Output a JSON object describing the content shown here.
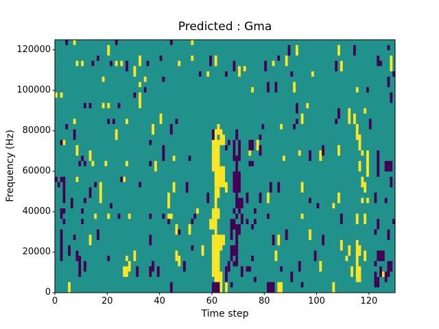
{
  "chart_data": {
    "type": "heatmap",
    "title": "Predicted : Gma",
    "xlabel": "Time step",
    "ylabel": "Frequency (Hz)",
    "xlim": [
      0,
      130
    ],
    "ylim": [
      0,
      125000
    ],
    "x_ticks": [
      0,
      20,
      40,
      60,
      80,
      100,
      120
    ],
    "y_ticks": [
      0,
      20000,
      40000,
      60000,
      80000,
      100000,
      120000
    ],
    "grid": {
      "cols": 130,
      "rows": 48
    },
    "colormap": "viridis",
    "colors": {
      "teal": "#21918c",
      "yellow": "#fde725",
      "dark": "#440154",
      "spine": "#000000",
      "text": "#000000",
      "figure_bg": "#ffffff"
    },
    "cell_format": "[col, row_from_top, rowspan=1, colspan=1]",
    "yellow_cells": [
      [
        7,
        0
      ],
      [
        20,
        1,
        2
      ],
      [
        8,
        4
      ],
      [
        10,
        4
      ],
      [
        23,
        4
      ],
      [
        25,
        4
      ],
      [
        30,
        5,
        2
      ],
      [
        18,
        7
      ],
      [
        32,
        8
      ],
      [
        0,
        10
      ],
      [
        2,
        10
      ],
      [
        18,
        12
      ],
      [
        20,
        12
      ],
      [
        7,
        15
      ],
      [
        27,
        15
      ],
      [
        52,
        0
      ],
      [
        32,
        3,
        2
      ],
      [
        52,
        3
      ],
      [
        61,
        3,
        2
      ],
      [
        47,
        4
      ],
      [
        58,
        6
      ],
      [
        34,
        7
      ],
      [
        32,
        10,
        3
      ],
      [
        40,
        14,
        2
      ],
      [
        37,
        16,
        2
      ],
      [
        92,
        1,
        2
      ],
      [
        88,
        3,
        2
      ],
      [
        83,
        4
      ],
      [
        72,
        5
      ],
      [
        70,
        5,
        2
      ],
      [
        86,
        16
      ],
      [
        75,
        9
      ],
      [
        91,
        8,
        2
      ],
      [
        96,
        12
      ],
      [
        94,
        14,
        2
      ],
      [
        77,
        19,
        2
      ],
      [
        108,
        1,
        2
      ],
      [
        128,
        3,
        3
      ],
      [
        109,
        4,
        2
      ],
      [
        98,
        6
      ],
      [
        115,
        9
      ],
      [
        112,
        13,
        3
      ],
      [
        118,
        13
      ],
      [
        114,
        14,
        2
      ],
      [
        115,
        16,
        3
      ],
      [
        23,
        17,
        2
      ],
      [
        3,
        19
      ],
      [
        8,
        20,
        2
      ],
      [
        13,
        21,
        2
      ],
      [
        14,
        23
      ],
      [
        19,
        23
      ],
      [
        27,
        23
      ],
      [
        8,
        26
      ],
      [
        26,
        26
      ],
      [
        17,
        27,
        4
      ],
      [
        45,
        22
      ],
      [
        38,
        23,
        2
      ],
      [
        45,
        27,
        2
      ],
      [
        43,
        29,
        3
      ],
      [
        62,
        16,
        2
      ],
      [
        61,
        17,
        3
      ],
      [
        63,
        17,
        3
      ],
      [
        64,
        18,
        2
      ],
      [
        62,
        19,
        9
      ],
      [
        60,
        19,
        6
      ],
      [
        61,
        20,
        8
      ],
      [
        63,
        24,
        4
      ],
      [
        64,
        24,
        4
      ],
      [
        61,
        28,
        5
      ],
      [
        62,
        28,
        2
      ],
      [
        60,
        32,
        2
      ],
      [
        62,
        32,
        2
      ],
      [
        61,
        33,
        5
      ],
      [
        59,
        34,
        2
      ],
      [
        60,
        34,
        2
      ],
      [
        60,
        37,
        4
      ],
      [
        62,
        37,
        3
      ],
      [
        63,
        37,
        3
      ],
      [
        64,
        37,
        2
      ],
      [
        61,
        38,
        8
      ],
      [
        62,
        40,
        5
      ],
      [
        60,
        41,
        4
      ],
      [
        63,
        44,
        4
      ],
      [
        61,
        45
      ],
      [
        62,
        45
      ],
      [
        74,
        21
      ],
      [
        87,
        22
      ],
      [
        93,
        21
      ],
      [
        65,
        27,
        2
      ],
      [
        94,
        27,
        2
      ],
      [
        81,
        29,
        2
      ],
      [
        116,
        18,
        3
      ],
      [
        108,
        20,
        2
      ],
      [
        101,
        21,
        2
      ],
      [
        117,
        21
      ],
      [
        119,
        21,
        5
      ],
      [
        116,
        23,
        2
      ],
      [
        117,
        26,
        2
      ],
      [
        118,
        27,
        2
      ],
      [
        108,
        29,
        2
      ],
      [
        117,
        30
      ],
      [
        119,
        30
      ],
      [
        106,
        31
      ],
      [
        15,
        33
      ],
      [
        20,
        33
      ],
      [
        28,
        33
      ],
      [
        13,
        37,
        2
      ],
      [
        30,
        40,
        2
      ],
      [
        27,
        41
      ],
      [
        28,
        42,
        2
      ],
      [
        26,
        43,
        2,
        2
      ],
      [
        5,
        46,
        2
      ],
      [
        54,
        32
      ],
      [
        43,
        33,
        1,
        2
      ],
      [
        46,
        35,
        2
      ],
      [
        51,
        35,
        2
      ],
      [
        56,
        39,
        2
      ],
      [
        46,
        40,
        2
      ],
      [
        47,
        41,
        2
      ],
      [
        94,
        33
      ],
      [
        85,
        37,
        2
      ],
      [
        84,
        40,
        2
      ],
      [
        65,
        46,
        2
      ],
      [
        85,
        46,
        2,
        2
      ],
      [
        115,
        33,
        2
      ],
      [
        118,
        33,
        2
      ],
      [
        97,
        36,
        2
      ],
      [
        109,
        38,
        2
      ],
      [
        112,
        39,
        2
      ],
      [
        115,
        38,
        8
      ],
      [
        116,
        39,
        2
      ],
      [
        113,
        43,
        2
      ],
      [
        116,
        43,
        2
      ],
      [
        111,
        41
      ],
      [
        118,
        40,
        2
      ],
      [
        101,
        42,
        2
      ],
      [
        125,
        44
      ],
      [
        116,
        45
      ],
      [
        106,
        46,
        2
      ]
    ],
    "dark_cells": [
      [
        4,
        0
      ],
      [
        23,
        0
      ],
      [
        16,
        3
      ],
      [
        14,
        4
      ],
      [
        21,
        4
      ],
      [
        27,
        4,
        2
      ],
      [
        30,
        10
      ],
      [
        11,
        12
      ],
      [
        13,
        12
      ],
      [
        24,
        12
      ],
      [
        20,
        15
      ],
      [
        22,
        15
      ],
      [
        44,
        0
      ],
      [
        40,
        3
      ],
      [
        59,
        3,
        2
      ],
      [
        35,
        4
      ],
      [
        55,
        6
      ],
      [
        41,
        7
      ],
      [
        34,
        9
      ],
      [
        46,
        15
      ],
      [
        44,
        16,
        2
      ],
      [
        89,
        1,
        2
      ],
      [
        85,
        3
      ],
      [
        68,
        4,
        2
      ],
      [
        80,
        4,
        2
      ],
      [
        65,
        6
      ],
      [
        90,
        6
      ],
      [
        81,
        8,
        2
      ],
      [
        84,
        8,
        2
      ],
      [
        92,
        12
      ],
      [
        92,
        13
      ],
      [
        92,
        15
      ],
      [
        79,
        16
      ],
      [
        114,
        1,
        2
      ],
      [
        127,
        1
      ],
      [
        123,
        3,
        2
      ],
      [
        124,
        4
      ],
      [
        107,
        4,
        2
      ],
      [
        129,
        6
      ],
      [
        127,
        7,
        2
      ],
      [
        119,
        9
      ],
      [
        128,
        10,
        2
      ],
      [
        108,
        13,
        2
      ],
      [
        107,
        15
      ],
      [
        120,
        15,
        2
      ],
      [
        4,
        16
      ],
      [
        7,
        17,
        2
      ],
      [
        2,
        19
      ],
      [
        10,
        22
      ],
      [
        9,
        23
      ],
      [
        11,
        23
      ],
      [
        0,
        26
      ],
      [
        2,
        26,
        1,
        2
      ],
      [
        25,
        26
      ],
      [
        1,
        27
      ],
      [
        3,
        27,
        4
      ],
      [
        15,
        27
      ],
      [
        32,
        27
      ],
      [
        13,
        28,
        2
      ],
      [
        11,
        30
      ],
      [
        6,
        30,
        2
      ],
      [
        21,
        31
      ],
      [
        36,
        19
      ],
      [
        41,
        20,
        3
      ],
      [
        51,
        22
      ],
      [
        36,
        23
      ],
      [
        50,
        27,
        2
      ],
      [
        58,
        29,
        2
      ],
      [
        60,
        17,
        2
      ],
      [
        91,
        16
      ],
      [
        69,
        17,
        2
      ],
      [
        78,
        18
      ],
      [
        66,
        19
      ],
      [
        68,
        19,
        2
      ],
      [
        65,
        20
      ],
      [
        70,
        19,
        4
      ],
      [
        74,
        19,
        2,
        2
      ],
      [
        78,
        20,
        2
      ],
      [
        68,
        21,
        2
      ],
      [
        69,
        22,
        2
      ],
      [
        74,
        23,
        1,
        2
      ],
      [
        69,
        24
      ],
      [
        68,
        25,
        4,
        3
      ],
      [
        82,
        27,
        2
      ],
      [
        85,
        27,
        2
      ],
      [
        69,
        29,
        2
      ],
      [
        73,
        29,
        2
      ],
      [
        78,
        29,
        2
      ],
      [
        69,
        30,
        2,
        3
      ],
      [
        97,
        30
      ],
      [
        102,
        20,
        2
      ],
      [
        97,
        21,
        2
      ],
      [
        123,
        21,
        5
      ],
      [
        126,
        23,
        2,
        3
      ],
      [
        128,
        26,
        2
      ],
      [
        122,
        29,
        2
      ],
      [
        126,
        30
      ],
      [
        100,
        31
      ],
      [
        2,
        32,
        2
      ],
      [
        3,
        32
      ],
      [
        10,
        32
      ],
      [
        24,
        33
      ],
      [
        3,
        34
      ],
      [
        10,
        34
      ],
      [
        2,
        36,
        6
      ],
      [
        16,
        36,
        2
      ],
      [
        7,
        37
      ],
      [
        5,
        39,
        2
      ],
      [
        8,
        40,
        2
      ],
      [
        9,
        41,
        4
      ],
      [
        11,
        42,
        2
      ],
      [
        20,
        41
      ],
      [
        31,
        43,
        2
      ],
      [
        36,
        33
      ],
      [
        41,
        33
      ],
      [
        53,
        33
      ],
      [
        43,
        34
      ],
      [
        52,
        34
      ],
      [
        47,
        36
      ],
      [
        36,
        37,
        2
      ],
      [
        52,
        39
      ],
      [
        49,
        42,
        2
      ],
      [
        37,
        42,
        2
      ],
      [
        36,
        43,
        2
      ],
      [
        39,
        43,
        2
      ],
      [
        44,
        46,
        2
      ],
      [
        60,
        46,
        2
      ],
      [
        61,
        46,
        2
      ],
      [
        62,
        46,
        2
      ],
      [
        68,
        32
      ],
      [
        70,
        32
      ],
      [
        76,
        32
      ],
      [
        69,
        33
      ],
      [
        71,
        33,
        2
      ],
      [
        73,
        34
      ],
      [
        81,
        33
      ],
      [
        76,
        34
      ],
      [
        75,
        35
      ],
      [
        67,
        34,
        4
      ],
      [
        68,
        34,
        2
      ],
      [
        69,
        35,
        4
      ],
      [
        70,
        35,
        2
      ],
      [
        67,
        39,
        3
      ],
      [
        68,
        39,
        2
      ],
      [
        69,
        39,
        2
      ],
      [
        69,
        41,
        2
      ],
      [
        88,
        36,
        2
      ],
      [
        83,
        37,
        2
      ],
      [
        75,
        41
      ],
      [
        66,
        42,
        2
      ],
      [
        68,
        42
      ],
      [
        93,
        42,
        2
      ],
      [
        71,
        43,
        2
      ],
      [
        73,
        43,
        1,
        2
      ],
      [
        65,
        43,
        3
      ],
      [
        86,
        43
      ],
      [
        90,
        44,
        2
      ],
      [
        76,
        45
      ],
      [
        67,
        46
      ],
      [
        81,
        46,
        2,
        3
      ],
      [
        94,
        46
      ],
      [
        109,
        33,
        2
      ],
      [
        129,
        34
      ],
      [
        123,
        34,
        2
      ],
      [
        122,
        36
      ],
      [
        127,
        36,
        2
      ],
      [
        102,
        37,
        2
      ],
      [
        99,
        40,
        2
      ],
      [
        123,
        40,
        2,
        3
      ],
      [
        122,
        42
      ],
      [
        127,
        42,
        3
      ],
      [
        128,
        42,
        2
      ],
      [
        124,
        43,
        2
      ],
      [
        126,
        44,
        2
      ],
      [
        122,
        44,
        3
      ],
      [
        123,
        45,
        2
      ]
    ]
  }
}
